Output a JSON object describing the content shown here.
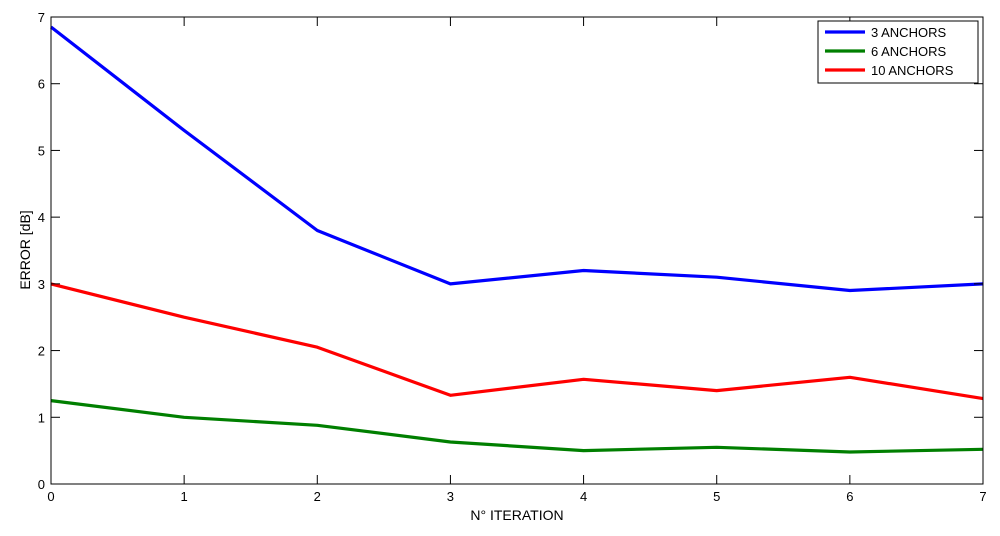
{
  "chart_data": {
    "type": "line",
    "title": "",
    "xlabel": "N° ITERATION",
    "ylabel": "ERROR [dB]",
    "xlim": [
      0,
      7
    ],
    "ylim": [
      0,
      7
    ],
    "xticks": [
      0,
      1,
      2,
      3,
      4,
      5,
      6,
      7
    ],
    "yticks": [
      0,
      1,
      2,
      3,
      4,
      5,
      6,
      7
    ],
    "grid": false,
    "legend_position": "top-right",
    "x": [
      0,
      1,
      2,
      3,
      4,
      5,
      6,
      7
    ],
    "series": [
      {
        "name": "3 ANCHORS",
        "color": "#0000ff",
        "values": [
          6.85,
          5.3,
          3.8,
          3.0,
          3.2,
          3.1,
          2.9,
          3.0
        ]
      },
      {
        "name": "6 ANCHORS",
        "color": "#007f00",
        "values": [
          1.25,
          1.0,
          0.88,
          0.63,
          0.5,
          0.55,
          0.48,
          0.52
        ]
      },
      {
        "name": "10 ANCHORS",
        "color": "#ff0000",
        "values": [
          3.0,
          2.5,
          2.05,
          1.33,
          1.57,
          1.4,
          1.6,
          1.28
        ]
      }
    ]
  }
}
